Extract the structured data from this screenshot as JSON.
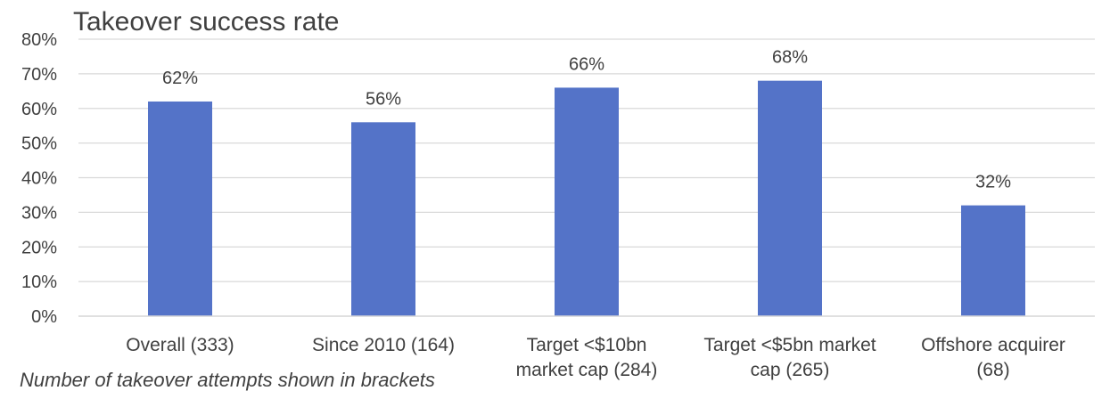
{
  "chart_data": {
    "type": "bar",
    "title": "Takeover success rate",
    "categories": [
      "Overall (333)",
      "Since 2010 (164)",
      "Target <$10bn market cap (284)",
      "Target <$5bn market cap (265)",
      "Offshore acquirer (68)"
    ],
    "category_lines": [
      [
        "Overall (333)"
      ],
      [
        "Since 2010 (164)"
      ],
      [
        "Target <$10bn",
        "market cap (284)"
      ],
      [
        "Target <$5bn market",
        "cap (265)"
      ],
      [
        "Offshore acquirer",
        "(68)"
      ]
    ],
    "values": [
      62,
      56,
      66,
      68,
      32
    ],
    "data_labels": [
      "62%",
      "56%",
      "66%",
      "68%",
      "32%"
    ],
    "ylim": [
      0,
      80
    ],
    "yticks": [
      "0%",
      "10%",
      "20%",
      "30%",
      "40%",
      "50%",
      "60%",
      "70%",
      "80%"
    ],
    "grid": true,
    "bar_color": "#5473C8",
    "grid_color": "#d9d9d9",
    "footnote": "Number of takeover attempts shown in brackets"
  }
}
